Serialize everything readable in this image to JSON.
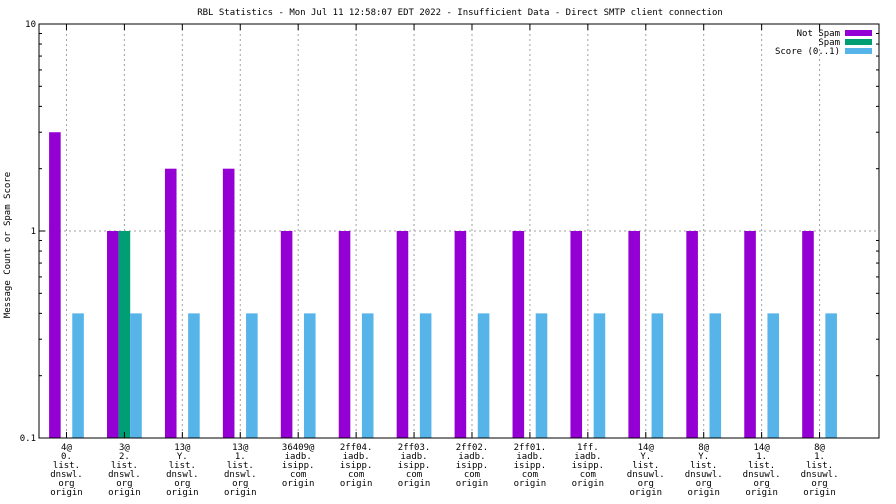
{
  "chart_data": {
    "type": "bar",
    "title": "RBL Statistics - Mon Jul 11 12:58:07 EDT 2022 - Insufficient Data - Direct SMTP client connection",
    "ylabel": "Message Count or Spam Score",
    "xlabel": "",
    "yscale": "log",
    "ylim": [
      0.1,
      10
    ],
    "yticks": [
      "0.1",
      "1",
      "10"
    ],
    "grid": true,
    "legend_position": "top-right",
    "categories": [
      [
        "4@",
        "0.",
        "list.",
        "dnswl.",
        "org",
        "origin"
      ],
      [
        "3@",
        "2.",
        "list.",
        "dnswl.",
        "org",
        "origin"
      ],
      [
        "13@",
        "Y.",
        "list.",
        "dnswl.",
        "org",
        "origin"
      ],
      [
        "13@",
        "1.",
        "list.",
        "dnswl.",
        "org",
        "origin"
      ],
      [
        "36409@",
        "iadb.",
        "isipp.",
        "com",
        "origin"
      ],
      [
        "2ff04.",
        "iadb.",
        "isipp.",
        "com",
        "origin"
      ],
      [
        "2ff03.",
        "iadb.",
        "isipp.",
        "com",
        "origin"
      ],
      [
        "2ff02.",
        "iadb.",
        "isipp.",
        "com",
        "origin"
      ],
      [
        "2ff01.",
        "iadb.",
        "isipp.",
        "com",
        "origin"
      ],
      [
        "1ff.",
        "iadb.",
        "isipp.",
        "com",
        "origin"
      ],
      [
        "14@",
        "Y.",
        "list.",
        "dnsuwl.",
        "org",
        "origin"
      ],
      [
        "8@",
        "Y.",
        "list.",
        "dnsuwl.",
        "org",
        "origin"
      ],
      [
        "14@",
        "1.",
        "list.",
        "dnsuwl.",
        "org",
        "origin"
      ],
      [
        "8@",
        "1.",
        "list.",
        "dnsuwl.",
        "org",
        "origin"
      ]
    ],
    "series": [
      {
        "name": "Not Spam",
        "color": "#9400d3",
        "values": [
          3,
          1,
          2,
          2,
          1,
          1,
          1,
          1,
          1,
          1,
          1,
          1,
          1,
          1
        ]
      },
      {
        "name": "Spam",
        "color": "#009e73",
        "values": [
          null,
          1,
          null,
          null,
          null,
          null,
          null,
          null,
          null,
          null,
          null,
          null,
          null,
          null
        ]
      },
      {
        "name": "Score (0..1)",
        "color": "#56b4e9",
        "values": [
          0.4,
          0.4,
          0.4,
          0.4,
          0.4,
          0.4,
          0.4,
          0.4,
          0.4,
          0.4,
          0.4,
          0.4,
          0.4,
          0.4
        ]
      }
    ]
  }
}
